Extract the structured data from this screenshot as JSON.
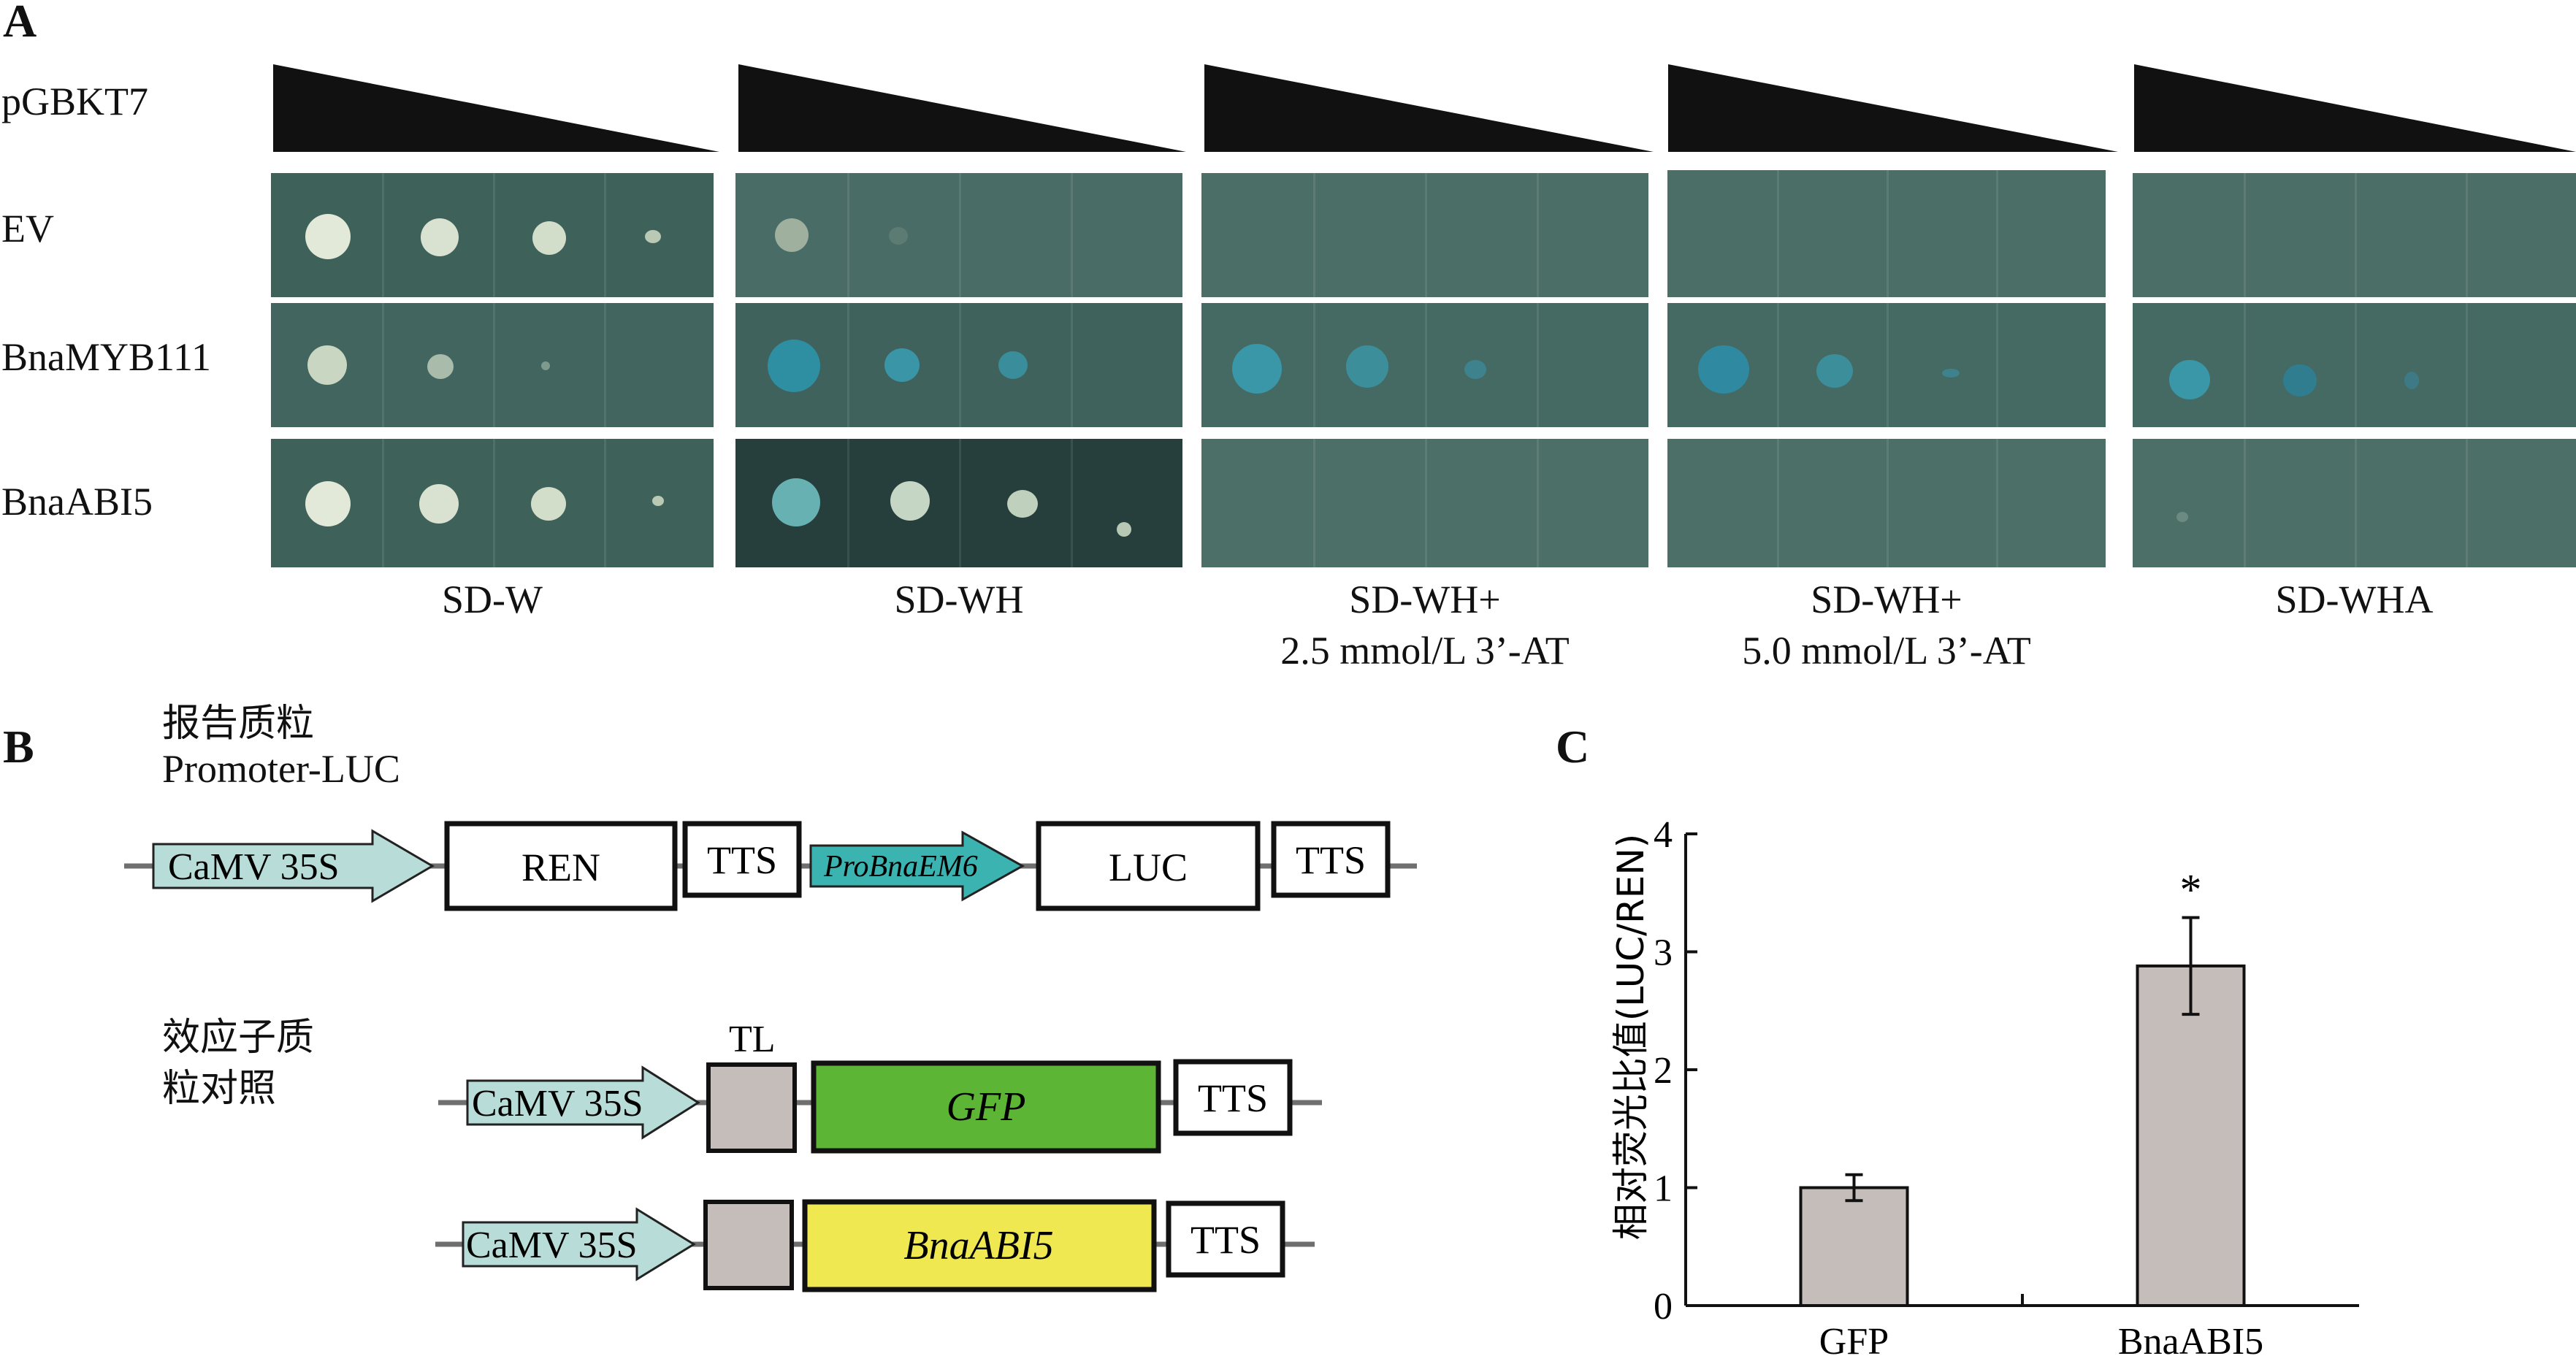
{
  "panel_a": {
    "letter": "A",
    "header_label": "pGBKT7",
    "rows": [
      "EV",
      "BnaMYB111",
      "BnaABI5"
    ],
    "conditions": [
      {
        "line1": "SD-W",
        "line2": ""
      },
      {
        "line1": "SD-WH",
        "line2": ""
      },
      {
        "line1": "SD-WH+",
        "line2": "2.5 mmol/L 3’-AT"
      },
      {
        "line1": "SD-WH+",
        "line2": "5.0 mmol/L 3’-AT"
      },
      {
        "line1": "SD-WHA",
        "line2": ""
      }
    ]
  },
  "panel_b": {
    "letter": "B",
    "reporter_title_cn": "报告质粒",
    "reporter_title_en": "Promoter-LUC",
    "reporter_parts": {
      "promoter": "CaMV 35S",
      "ren": "REN",
      "tts1": "TTS",
      "pro": "ProBnaEM6",
      "luc": "LUC",
      "tts2": "TTS"
    },
    "effector_title_line1": "效应子质",
    "effector_title_line2": "粒对照",
    "tl_label": "TL",
    "effector1": {
      "promoter": "CaMV 35S",
      "gene": "GFP",
      "tts": "TTS"
    },
    "effector2": {
      "promoter": "CaMV 35S",
      "gene": "BnaABI5",
      "tts": "TTS"
    }
  },
  "panel_c": {
    "letter": "C",
    "significance_mark": "*"
  },
  "chart_data": {
    "type": "bar",
    "categories": [
      "GFP",
      "BnaABI5"
    ],
    "values": [
      1.0,
      2.88
    ],
    "error": [
      0.11,
      0.41
    ],
    "ylabel": "相对荧光比值(LUC/REN)",
    "xlabel": "",
    "ylim": [
      0,
      4
    ],
    "yticks": [
      0,
      1,
      2,
      3,
      4
    ],
    "bar_color": "#c5bdba",
    "annotations": [
      {
        "category": "BnaABI5",
        "text": "*"
      }
    ],
    "grid": false
  },
  "colors": {
    "plate_dark": "#3c5f59",
    "plate_medium": "#4a6e68",
    "colony_white": "#dde6d4",
    "colony_blue": "#3f96a8",
    "promoter_fill": "#b8dcd8",
    "pro_fill": "#3bb3b0",
    "gfp_fill": "#5db535",
    "abi5_fill": "#efe851",
    "tl_fill": "#c5bdba"
  }
}
